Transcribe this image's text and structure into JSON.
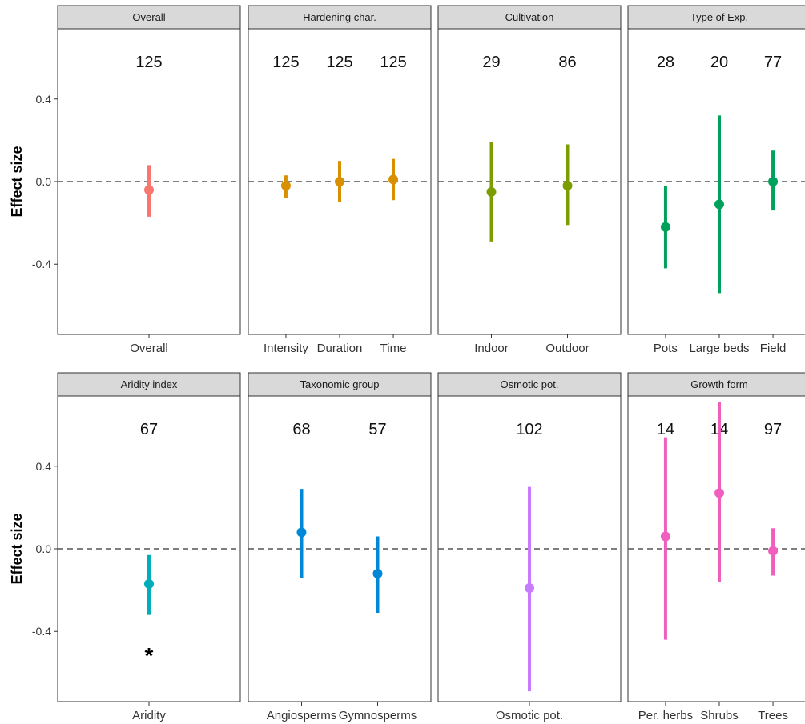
{
  "chart_data": {
    "type": "pointrange",
    "ylabel": "Effect size",
    "ylim": [
      -0.74,
      0.74
    ],
    "yticks": [
      -0.4,
      0.0,
      0.4
    ],
    "ytick_labels": [
      "-0.4",
      "0.0",
      "0.4"
    ],
    "reference_line": 0.0,
    "grid": false,
    "panels": [
      {
        "strip": "Overall",
        "color": "#F8766D",
        "points": [
          {
            "category": "Overall",
            "n": "125",
            "mean": -0.04,
            "lower": -0.17,
            "upper": 0.08
          }
        ]
      },
      {
        "strip": "Hardening char.",
        "color": "#D89000",
        "points": [
          {
            "category": "Intensity",
            "n": "125",
            "mean": -0.02,
            "lower": -0.08,
            "upper": 0.03
          },
          {
            "category": "Duration",
            "n": "125",
            "mean": 0.0,
            "lower": -0.1,
            "upper": 0.1
          },
          {
            "category": "Time",
            "n": "125",
            "mean": 0.01,
            "lower": -0.09,
            "upper": 0.11
          }
        ]
      },
      {
        "strip": "Cultivation",
        "color": "#7C9D00",
        "points": [
          {
            "category": "Indoor",
            "n": "29",
            "mean": -0.05,
            "lower": -0.29,
            "upper": 0.19
          },
          {
            "category": "Outdoor",
            "n": "86",
            "mean": -0.02,
            "lower": -0.21,
            "upper": 0.18
          }
        ]
      },
      {
        "strip": "Type of Exp.",
        "color": "#00A15A",
        "points": [
          {
            "category": "Pots",
            "n": "28",
            "mean": -0.22,
            "lower": -0.42,
            "upper": -0.02
          },
          {
            "category": "Large beds",
            "n": "20",
            "mean": -0.11,
            "lower": -0.54,
            "upper": 0.32
          },
          {
            "category": "Field",
            "n": "77",
            "mean": 0.0,
            "lower": -0.14,
            "upper": 0.15
          }
        ]
      },
      {
        "strip": "Aridity index",
        "color": "#00ADB8",
        "annotation": "*",
        "points": [
          {
            "category": "Aridity",
            "n": "67",
            "mean": -0.17,
            "lower": -0.32,
            "upper": -0.03
          }
        ]
      },
      {
        "strip": "Taxonomic group",
        "color": "#0088D8",
        "points": [
          {
            "category": "Angiosperms",
            "n": "68",
            "mean": 0.08,
            "lower": -0.14,
            "upper": 0.29
          },
          {
            "category": "Gymnosperms",
            "n": "57",
            "mean": -0.12,
            "lower": -0.31,
            "upper": 0.06
          }
        ]
      },
      {
        "strip": "Osmotic pot.",
        "color": "#C77CFF",
        "points": [
          {
            "category": "Osmotic pot.",
            "n": "102",
            "mean": -0.19,
            "lower": -0.69,
            "upper": 0.3
          }
        ]
      },
      {
        "strip": "Growth form",
        "color": "#F05FBE",
        "points": [
          {
            "category": "Per. herbs",
            "n": "14",
            "mean": 0.06,
            "lower": -0.44,
            "upper": 0.54
          },
          {
            "category": "Shrubs",
            "n": "14",
            "mean": 0.27,
            "lower": -0.16,
            "upper": 0.71
          },
          {
            "category": "Trees",
            "n": "97",
            "mean": -0.01,
            "lower": -0.13,
            "upper": 0.1
          }
        ]
      }
    ]
  }
}
